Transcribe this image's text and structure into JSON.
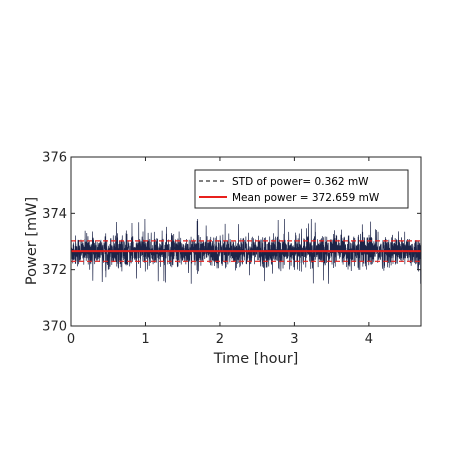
{
  "chart_data": {
    "type": "line",
    "title": "",
    "xlabel": "Time [hour]",
    "ylabel": "Power [mW]",
    "xlim": [
      0,
      4.7
    ],
    "ylim": [
      370,
      376
    ],
    "xticks": [
      0,
      1,
      2,
      3,
      4
    ],
    "yticks": [
      370,
      372,
      374,
      376
    ],
    "grid": false,
    "legend": {
      "placement": "top-right",
      "entries": [
        {
          "label": "STD of power= 0.362 mW",
          "style": "dashed",
          "color": "#000000"
        },
        {
          "label": "Mean power = 372.659 mW",
          "style": "solid",
          "color": "#e8201c"
        }
      ]
    },
    "series": [
      {
        "style": "noisy-line",
        "color": "#1c2448",
        "x_range": [
          0,
          4.7
        ],
        "center": 372.659,
        "typical_band": [
          372.0,
          373.3
        ],
        "extremes": [
          371.5,
          373.8
        ]
      },
      {
        "style": "solid",
        "color": "#e8201c",
        "x": [
          0,
          4.7
        ],
        "y": [
          372.659,
          372.659
        ]
      },
      {
        "style": "dashed",
        "color": "#e8201c",
        "x": [
          0,
          4.7
        ],
        "y": [
          373.021,
          373.021
        ]
      },
      {
        "style": "dashed",
        "color": "#e8201c",
        "x": [
          0,
          4.7
        ],
        "y": [
          372.297,
          372.297
        ]
      }
    ],
    "colors": {
      "noise": "#1c2448",
      "mean": "#e8201c",
      "axis": "#262626"
    }
  }
}
